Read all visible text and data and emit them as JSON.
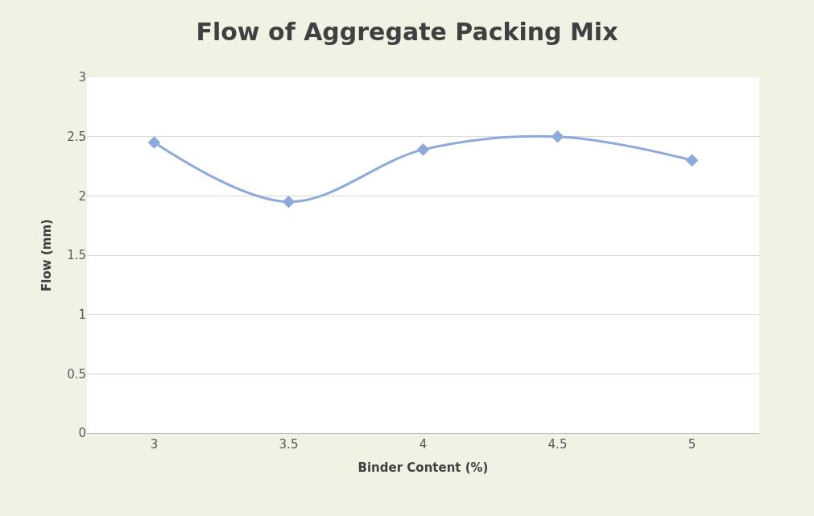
{
  "chart_data": {
    "type": "line",
    "title": "Flow of Aggregate Packing Mix",
    "xlabel": "Binder Content (%)",
    "ylabel": "Flow (mm)",
    "categories": [
      "3",
      "3.5",
      "4",
      "4.5",
      "5"
    ],
    "series": [
      {
        "color": "#8eaadb",
        "values": [
          2.45,
          1.95,
          2.39,
          2.5,
          2.3
        ]
      }
    ],
    "ylim": [
      0,
      3
    ],
    "yticks": [
      0,
      0.5,
      1,
      1.5,
      2,
      2.5,
      3
    ],
    "grid": "y",
    "marker": "diamond",
    "line_style": "solid"
  }
}
